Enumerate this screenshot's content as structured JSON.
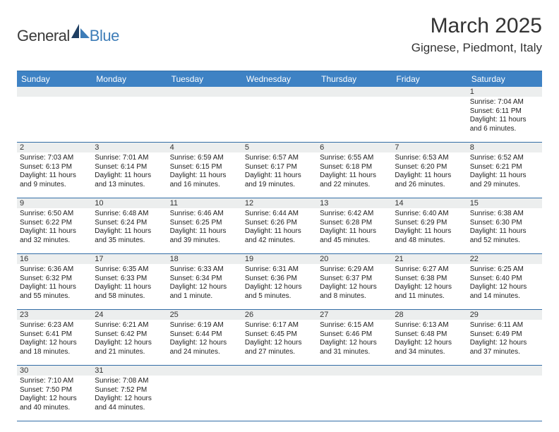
{
  "logo": {
    "part1": "General",
    "part2": "Blue"
  },
  "title": "March 2025",
  "location": "Gignese, Piedmont, Italy",
  "weekdays": [
    "Sunday",
    "Monday",
    "Tuesday",
    "Wednesday",
    "Thursday",
    "Friday",
    "Saturday"
  ],
  "colors": {
    "header_bar": "#3e82c4",
    "header_text": "#ffffff",
    "rule": "#326da6",
    "daynum_bg": "#eceeee",
    "logo_blue": "#3e7db8",
    "body_text": "#222222"
  },
  "weeks": [
    {
      "nums": [
        "",
        "",
        "",
        "",
        "",
        "",
        "1"
      ],
      "cells": [
        null,
        null,
        null,
        null,
        null,
        null,
        {
          "sunrise": "7:04 AM",
          "sunset": "6:11 PM",
          "daylight": "11 hours and 6 minutes."
        }
      ]
    },
    {
      "nums": [
        "2",
        "3",
        "4",
        "5",
        "6",
        "7",
        "8"
      ],
      "cells": [
        {
          "sunrise": "7:03 AM",
          "sunset": "6:13 PM",
          "daylight": "11 hours and 9 minutes."
        },
        {
          "sunrise": "7:01 AM",
          "sunset": "6:14 PM",
          "daylight": "11 hours and 13 minutes."
        },
        {
          "sunrise": "6:59 AM",
          "sunset": "6:15 PM",
          "daylight": "11 hours and 16 minutes."
        },
        {
          "sunrise": "6:57 AM",
          "sunset": "6:17 PM",
          "daylight": "11 hours and 19 minutes."
        },
        {
          "sunrise": "6:55 AM",
          "sunset": "6:18 PM",
          "daylight": "11 hours and 22 minutes."
        },
        {
          "sunrise": "6:53 AM",
          "sunset": "6:20 PM",
          "daylight": "11 hours and 26 minutes."
        },
        {
          "sunrise": "6:52 AM",
          "sunset": "6:21 PM",
          "daylight": "11 hours and 29 minutes."
        }
      ]
    },
    {
      "nums": [
        "9",
        "10",
        "11",
        "12",
        "13",
        "14",
        "15"
      ],
      "cells": [
        {
          "sunrise": "6:50 AM",
          "sunset": "6:22 PM",
          "daylight": "11 hours and 32 minutes."
        },
        {
          "sunrise": "6:48 AM",
          "sunset": "6:24 PM",
          "daylight": "11 hours and 35 minutes."
        },
        {
          "sunrise": "6:46 AM",
          "sunset": "6:25 PM",
          "daylight": "11 hours and 39 minutes."
        },
        {
          "sunrise": "6:44 AM",
          "sunset": "6:26 PM",
          "daylight": "11 hours and 42 minutes."
        },
        {
          "sunrise": "6:42 AM",
          "sunset": "6:28 PM",
          "daylight": "11 hours and 45 minutes."
        },
        {
          "sunrise": "6:40 AM",
          "sunset": "6:29 PM",
          "daylight": "11 hours and 48 minutes."
        },
        {
          "sunrise": "6:38 AM",
          "sunset": "6:30 PM",
          "daylight": "11 hours and 52 minutes."
        }
      ]
    },
    {
      "nums": [
        "16",
        "17",
        "18",
        "19",
        "20",
        "21",
        "22"
      ],
      "cells": [
        {
          "sunrise": "6:36 AM",
          "sunset": "6:32 PM",
          "daylight": "11 hours and 55 minutes."
        },
        {
          "sunrise": "6:35 AM",
          "sunset": "6:33 PM",
          "daylight": "11 hours and 58 minutes."
        },
        {
          "sunrise": "6:33 AM",
          "sunset": "6:34 PM",
          "daylight": "12 hours and 1 minute."
        },
        {
          "sunrise": "6:31 AM",
          "sunset": "6:36 PM",
          "daylight": "12 hours and 5 minutes."
        },
        {
          "sunrise": "6:29 AM",
          "sunset": "6:37 PM",
          "daylight": "12 hours and 8 minutes."
        },
        {
          "sunrise": "6:27 AM",
          "sunset": "6:38 PM",
          "daylight": "12 hours and 11 minutes."
        },
        {
          "sunrise": "6:25 AM",
          "sunset": "6:40 PM",
          "daylight": "12 hours and 14 minutes."
        }
      ]
    },
    {
      "nums": [
        "23",
        "24",
        "25",
        "26",
        "27",
        "28",
        "29"
      ],
      "cells": [
        {
          "sunrise": "6:23 AM",
          "sunset": "6:41 PM",
          "daylight": "12 hours and 18 minutes."
        },
        {
          "sunrise": "6:21 AM",
          "sunset": "6:42 PM",
          "daylight": "12 hours and 21 minutes."
        },
        {
          "sunrise": "6:19 AM",
          "sunset": "6:44 PM",
          "daylight": "12 hours and 24 minutes."
        },
        {
          "sunrise": "6:17 AM",
          "sunset": "6:45 PM",
          "daylight": "12 hours and 27 minutes."
        },
        {
          "sunrise": "6:15 AM",
          "sunset": "6:46 PM",
          "daylight": "12 hours and 31 minutes."
        },
        {
          "sunrise": "6:13 AM",
          "sunset": "6:48 PM",
          "daylight": "12 hours and 34 minutes."
        },
        {
          "sunrise": "6:11 AM",
          "sunset": "6:49 PM",
          "daylight": "12 hours and 37 minutes."
        }
      ]
    },
    {
      "nums": [
        "30",
        "31",
        "",
        "",
        "",
        "",
        ""
      ],
      "cells": [
        {
          "sunrise": "7:10 AM",
          "sunset": "7:50 PM",
          "daylight": "12 hours and 40 minutes."
        },
        {
          "sunrise": "7:08 AM",
          "sunset": "7:52 PM",
          "daylight": "12 hours and 44 minutes."
        },
        null,
        null,
        null,
        null,
        null
      ]
    }
  ],
  "labels": {
    "sunrise": "Sunrise: ",
    "sunset": "Sunset: ",
    "daylight": "Daylight: "
  }
}
